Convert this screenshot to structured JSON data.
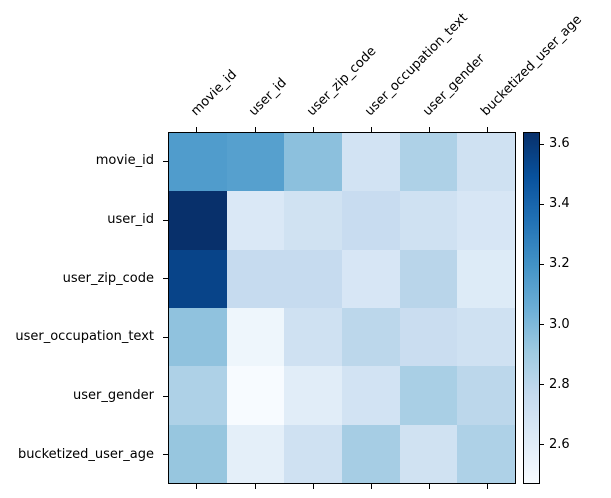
{
  "figure": {
    "background": "#ffffff",
    "axis_color": "#000000",
    "text_color": "#000000"
  },
  "chart_data": {
    "type": "heatmap",
    "title": "",
    "xlabel": "",
    "ylabel": "",
    "colormap": "Blues",
    "grid": false,
    "categories": [
      "movie_id",
      "user_id",
      "user_zip_code",
      "user_occupation_text",
      "user_gender",
      "bucketized_user_age"
    ],
    "row_labels": [
      "movie_id",
      "user_id",
      "user_zip_code",
      "user_occupation_text",
      "user_gender",
      "bucketized_user_age"
    ],
    "col_labels": [
      "movie_id",
      "user_id",
      "user_zip_code",
      "user_occupation_text",
      "user_gender",
      "bucketized_user_age"
    ],
    "values": [
      [
        3.15,
        3.13,
        2.96,
        2.69,
        2.85,
        2.71
      ],
      [
        3.64,
        2.64,
        2.7,
        2.75,
        2.71,
        2.66
      ],
      [
        3.55,
        2.76,
        2.76,
        2.66,
        2.81,
        2.62
      ],
      [
        2.95,
        2.52,
        2.71,
        2.8,
        2.74,
        2.71
      ],
      [
        2.85,
        2.47,
        2.6,
        2.69,
        2.87,
        2.8
      ],
      [
        2.93,
        2.58,
        2.71,
        2.88,
        2.7,
        2.85
      ]
    ],
    "vmin": 2.47,
    "vmax": 3.64,
    "colorbar": {
      "position": "right",
      "ticks": [
        2.6,
        2.8,
        3.0,
        3.2,
        3.4,
        3.6
      ],
      "tick_format_decimals": 1
    },
    "colormap_endpoints": {
      "low": "#f7fbff",
      "high": "#08306b"
    }
  }
}
